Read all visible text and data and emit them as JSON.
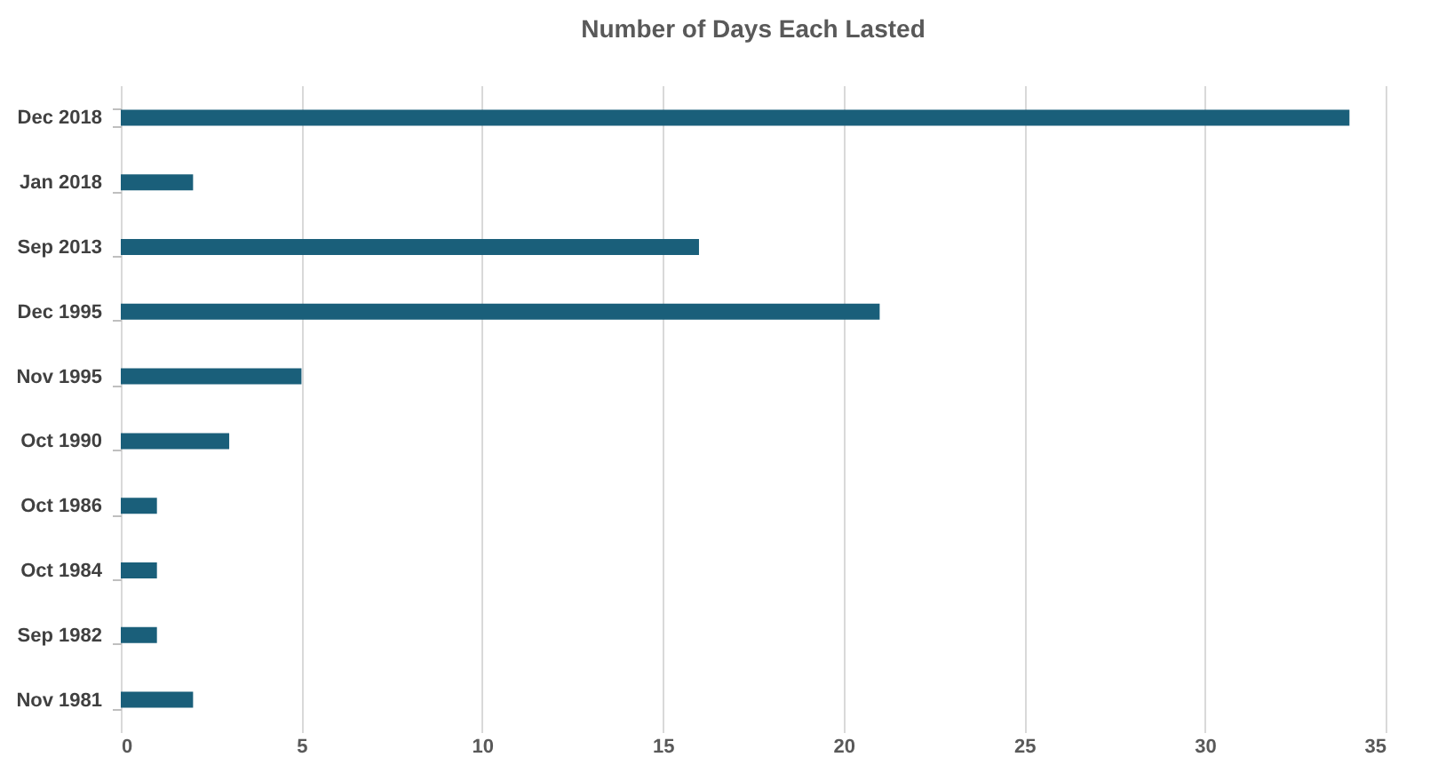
{
  "chart_data": {
    "type": "bar",
    "orientation": "horizontal",
    "title": "Number of Days Each Lasted",
    "categories": [
      "Dec 2018",
      "Jan 2018",
      "Sep 2013",
      "Dec 1995",
      "Nov 1995",
      "Oct 1990",
      "Oct 1986",
      "Oct 1984",
      "Sep 1982",
      "Nov 1981"
    ],
    "values": [
      34,
      2,
      16,
      21,
      5,
      3,
      1,
      1,
      1,
      2
    ],
    "color": "#1a5f7a",
    "xlim": [
      0,
      35
    ],
    "xticks": [
      0,
      5,
      10,
      15,
      20,
      25,
      30,
      35
    ],
    "grid": "x"
  }
}
